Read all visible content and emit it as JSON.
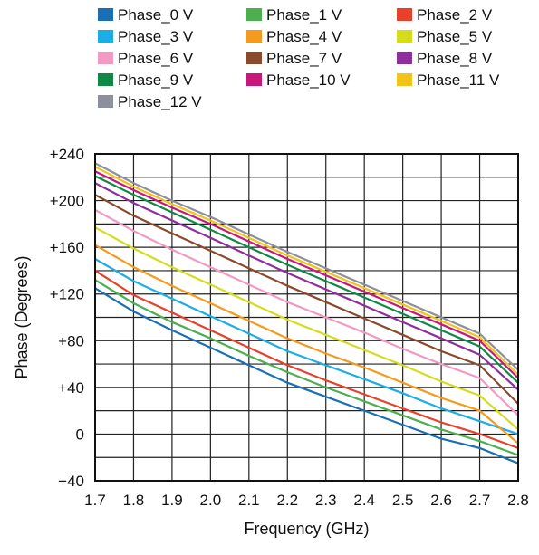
{
  "chart_data": {
    "type": "line",
    "title": "",
    "xlabel": "Frequency (GHz)",
    "ylabel": "Phase (Degrees)",
    "xlim": [
      1.7,
      2.8
    ],
    "ylim": [
      -40,
      240
    ],
    "grid": true,
    "legend_position": "top",
    "x_ticks": [
      {
        "value": 1.7,
        "label": "1.7"
      },
      {
        "value": 1.8,
        "label": "1.8"
      },
      {
        "value": 1.9,
        "label": "1.9"
      },
      {
        "value": 2.0,
        "label": "2.0"
      },
      {
        "value": 2.1,
        "label": "2.1"
      },
      {
        "value": 2.2,
        "label": "2.2"
      },
      {
        "value": 2.3,
        "label": "2.3"
      },
      {
        "value": 2.4,
        "label": "2.4"
      },
      {
        "value": 2.5,
        "label": "2.5"
      },
      {
        "value": 2.6,
        "label": "2.6"
      },
      {
        "value": 2.7,
        "label": "2.7"
      },
      {
        "value": 2.8,
        "label": "2.8"
      }
    ],
    "y_ticks": [
      {
        "value": 240,
        "label": "+240"
      },
      {
        "value": 200,
        "label": "+200"
      },
      {
        "value": 160,
        "label": "+160"
      },
      {
        "value": 120,
        "label": "+120"
      },
      {
        "value": 80,
        "label": "+80"
      },
      {
        "value": 40,
        "label": "+40"
      },
      {
        "value": 0,
        "label": "0"
      },
      {
        "value": -40,
        "label": "−40"
      }
    ],
    "x": [
      1.7,
      1.8,
      1.9,
      2.0,
      2.1,
      2.2,
      2.3,
      2.4,
      2.5,
      2.6,
      2.7,
      2.8
    ],
    "series": [
      {
        "name": "Phase_0 V",
        "color": "#1a6fb5",
        "values": [
          125,
          105,
          89,
          74,
          59,
          44,
          32,
          20,
          8,
          -4,
          -12,
          -25
        ]
      },
      {
        "name": "Phase_1 V",
        "color": "#4caf50",
        "values": [
          132,
          112,
          96,
          82,
          67,
          53,
          40,
          28,
          16,
          4,
          -6,
          -18
        ]
      },
      {
        "name": "Phase_2 V",
        "color": "#e8402a",
        "values": [
          140,
          119,
          104,
          89,
          74,
          59,
          46,
          34,
          22,
          10,
          0,
          -12
        ]
      },
      {
        "name": "Phase_3 V",
        "color": "#1aaee5",
        "values": [
          150,
          131,
          116,
          101,
          86,
          71,
          59,
          47,
          35,
          22,
          11,
          0
        ]
      },
      {
        "name": "Phase_4 V",
        "color": "#f59a1c",
        "values": [
          162,
          143,
          127,
          112,
          97,
          82,
          69,
          57,
          44,
          31,
          20,
          -8
        ]
      },
      {
        "name": "Phase_5 V",
        "color": "#d4dc1c",
        "values": [
          177,
          159,
          143,
          128,
          113,
          98,
          85,
          72,
          59,
          45,
          33,
          4
        ]
      },
      {
        "name": "Phase_6 V",
        "color": "#f29ac3",
        "values": [
          192,
          174,
          158,
          143,
          128,
          113,
          100,
          87,
          73,
          60,
          48,
          16
        ]
      },
      {
        "name": "Phase_7 V",
        "color": "#8b4a2c",
        "values": [
          205,
          187,
          172,
          157,
          142,
          127,
          113,
          99,
          85,
          71,
          59,
          26
        ]
      },
      {
        "name": "Phase_8 V",
        "color": "#8e2f9b",
        "values": [
          215,
          198,
          183,
          168,
          153,
          138,
          124,
          110,
          96,
          82,
          68,
          38
        ]
      },
      {
        "name": "Phase_9 V",
        "color": "#0f8a44",
        "values": [
          221,
          205,
          190,
          175,
          160,
          145,
          131,
          117,
          103,
          89,
          75,
          44
        ]
      },
      {
        "name": "Phase_10 V",
        "color": "#c9177a",
        "values": [
          225,
          209,
          194,
          180,
          165,
          150,
          136,
          122,
          108,
          94,
          80,
          48
        ]
      },
      {
        "name": "Phase_11 V",
        "color": "#f2c319",
        "values": [
          229,
          212,
          197,
          183,
          168,
          153,
          139,
          125,
          111,
          97,
          83,
          51
        ]
      },
      {
        "name": "Phase_12 V",
        "color": "#8c8f9c",
        "values": [
          232,
          215,
          200,
          186,
          171,
          156,
          142,
          128,
          114,
          100,
          86,
          55
        ]
      }
    ]
  }
}
